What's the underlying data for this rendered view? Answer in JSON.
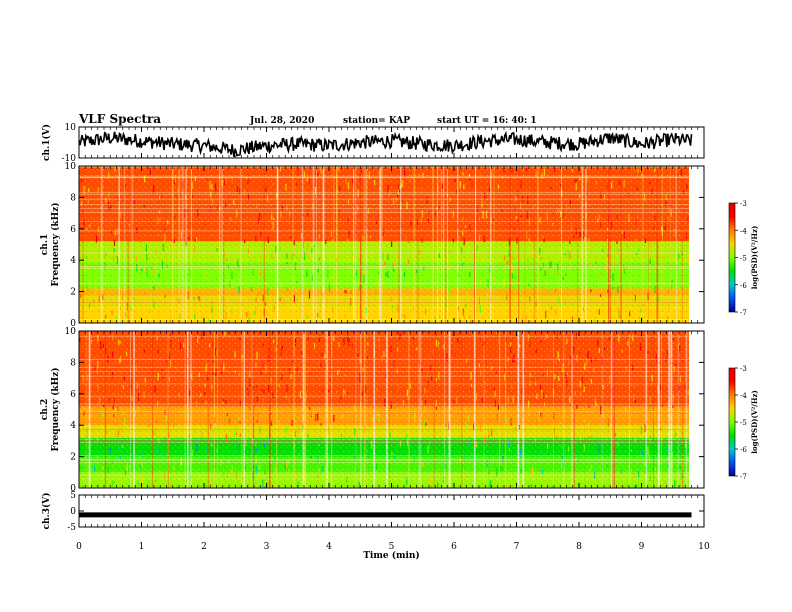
{
  "header": {
    "title": "VLF Spectra",
    "date": "Jul. 28, 2020",
    "station": "station= KAP",
    "start": "start  UT =   16: 40: 1"
  },
  "colorbar": {
    "label": "log(PSD)(V²/Hz)",
    "ticks": [
      "-3",
      "-4",
      "-5",
      "-6",
      "-7"
    ],
    "stops": [
      "#e60000",
      "#ff0000",
      "#ff8000",
      "#ffd400",
      "#7fff00",
      "#00e000",
      "#00c8c8",
      "#0050ff",
      "#000090"
    ]
  },
  "chart_data": [
    {
      "type": "line",
      "title": "",
      "ylabel": "ch.1(V)",
      "ylim": [
        -10,
        10
      ],
      "yticks": [
        "10",
        "-10"
      ],
      "x": [
        0,
        0.5,
        1,
        1.5,
        2,
        2.5,
        3,
        3.5,
        4,
        4.5,
        5,
        5.5,
        6,
        6.5,
        7,
        7.5,
        8,
        8.5,
        9,
        9.5,
        9.8
      ],
      "series": [
        {
          "values": [
            0,
            3,
            1,
            -1,
            -2,
            -5,
            -2,
            -1,
            -2,
            0,
            1,
            -1,
            -2,
            1,
            2,
            0,
            -1,
            3,
            -1,
            2,
            1
          ]
        }
      ]
    },
    {
      "type": "heatmap",
      "ylabel": "ch.1\nFrequency (kHz)",
      "xlim": [
        0,
        9.8
      ],
      "ylim": [
        0,
        10
      ],
      "yticks": [
        "10",
        "8",
        "6",
        "4",
        "2",
        "0"
      ],
      "bands_khz": [
        {
          "from": 0,
          "to": 1,
          "log_psd": -4.5
        },
        {
          "from": 1,
          "to": 1.7,
          "log_psd": -4.6
        },
        {
          "from": 1.7,
          "to": 2.2,
          "log_psd": -4.3
        },
        {
          "from": 2.2,
          "to": 3.9,
          "log_psd": -5.0
        },
        {
          "from": 3.9,
          "to": 5.2,
          "log_psd": -4.8
        },
        {
          "from": 5.2,
          "to": 10,
          "log_psd": -3.8
        }
      ]
    },
    {
      "type": "heatmap",
      "ylabel": "ch.2\nFrequency (kHz)",
      "xlim": [
        0,
        9.8
      ],
      "ylim": [
        0,
        10
      ],
      "yticks": [
        "10",
        "8",
        "6",
        "4",
        "2",
        "0"
      ],
      "bands_khz": [
        {
          "from": 0,
          "to": 1,
          "log_psd": -4.9
        },
        {
          "from": 1,
          "to": 2,
          "log_psd": -5.2
        },
        {
          "from": 2,
          "to": 3.2,
          "log_psd": -5.5
        },
        {
          "from": 3.2,
          "to": 4,
          "log_psd": -4.6
        },
        {
          "from": 4,
          "to": 5.2,
          "log_psd": -4.2
        },
        {
          "from": 5.2,
          "to": 10,
          "log_psd": -3.8
        }
      ]
    },
    {
      "type": "line",
      "ylabel": "ch.3(V)",
      "ylim": [
        -5,
        5
      ],
      "yticks": [
        "5",
        "0",
        "-5"
      ],
      "x": [
        0,
        9.8
      ],
      "series": [
        {
          "values": [
            -1.2,
            -1.2
          ]
        }
      ]
    }
  ],
  "xaxis": {
    "label": "Time (min)",
    "ticks": [
      "0",
      "1",
      "2",
      "3",
      "4",
      "5",
      "6",
      "7",
      "8",
      "9",
      "10"
    ]
  }
}
